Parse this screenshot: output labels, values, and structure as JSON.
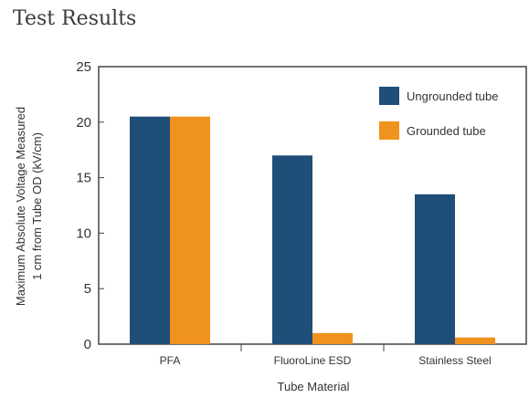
{
  "title": "Test Results",
  "chart_data": {
    "type": "bar",
    "categories": [
      "PFA",
      "FluoroLine ESD",
      "Stainless Steel"
    ],
    "series": [
      {
        "name": "Ungrounded tube",
        "values": [
          20.5,
          17,
          13.5
        ],
        "color": "#1f4e79"
      },
      {
        "name": "Grounded tube",
        "values": [
          20.5,
          1,
          0.6
        ],
        "color": "#f0921e"
      }
    ],
    "xlabel": "Tube Material",
    "ylabel_line1": "Maximum Absolute Voltage Measured",
    "ylabel_line2": "1 cm from Tube OD (kV/cm)",
    "ylim": [
      0,
      25
    ],
    "yticks": [
      0,
      5,
      10,
      15,
      20,
      25
    ],
    "grid": false,
    "legend_position": "top-right"
  }
}
